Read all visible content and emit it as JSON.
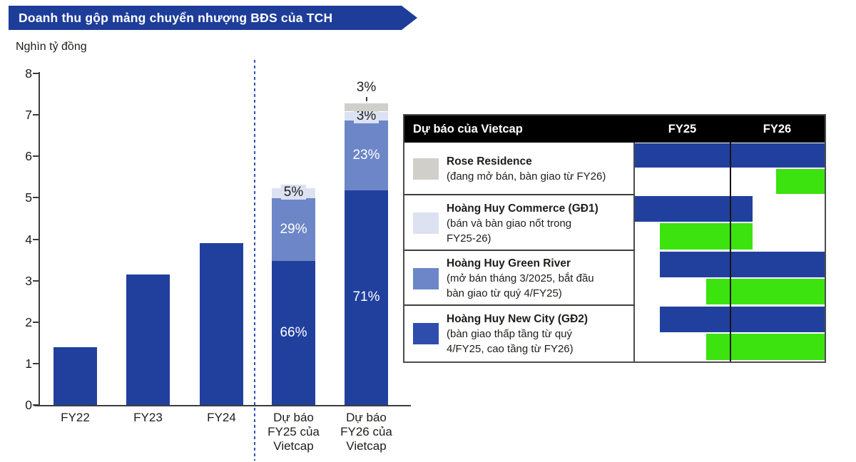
{
  "colors": {
    "dark_blue": "#21409e",
    "medium_blue": "#6d86c7",
    "light_blue": "#dce2f1",
    "gray": "#d0cfca",
    "green": "#3ce30e",
    "swatch_blue": "#2e4dad",
    "banner": "#1d3d99",
    "dashed": "#2b50bb",
    "header_bg": "#000000",
    "axis": "#3c3c3c"
  },
  "chart_data": {
    "type": "bar",
    "title": "Doanh thu gộp mảng chuyển nhượng BĐS của TCH",
    "ylabel": "Nghìn tỷ đồng",
    "xlabel": "",
    "ylim": [
      0,
      8
    ],
    "yticks": [
      0,
      1,
      2,
      3,
      4,
      5,
      6,
      7,
      8
    ],
    "grid": false,
    "categories": [
      "FY22",
      "FY23",
      "FY24",
      "Dự báo FY25 của Vietcap",
      "Dự báo FY26 của Vietcap"
    ],
    "totals": [
      1.4,
      3.15,
      3.9,
      5.25,
      7.3
    ],
    "bars": [
      {
        "category": "FY22",
        "label_lines": [
          "FY22"
        ],
        "segments": [
          {
            "value": 1.4,
            "color": "dark_blue"
          }
        ]
      },
      {
        "category": "FY23",
        "label_lines": [
          "FY23"
        ],
        "segments": [
          {
            "value": 3.15,
            "color": "dark_blue"
          }
        ]
      },
      {
        "category": "FY24",
        "label_lines": [
          "FY24"
        ],
        "segments": [
          {
            "value": 3.9,
            "color": "dark_blue"
          }
        ]
      },
      {
        "category": "Dự báo FY25 của Vietcap",
        "label_lines": [
          "Dự báo",
          "FY25 của",
          "Vietcap"
        ],
        "segments": [
          {
            "value": 3.47,
            "color": "dark_blue",
            "label": "66%",
            "label_color": "#ffffff"
          },
          {
            "value": 1.52,
            "color": "medium_blue",
            "label": "29%",
            "label_color": "#ffffff"
          },
          {
            "value": 0.26,
            "color": "light_blue",
            "label": "5%",
            "label_color": "#1d1d1b",
            "label_bg": true
          }
        ]
      },
      {
        "category": "Dự báo FY26 của Vietcap",
        "label_lines": [
          "Dự báo",
          "FY26 của",
          "Vietcap"
        ],
        "segments": [
          {
            "value": 5.18,
            "color": "dark_blue",
            "label": "71%",
            "label_color": "#ffffff"
          },
          {
            "value": 1.68,
            "color": "medium_blue",
            "label": "23%",
            "label_color": "#ffffff"
          },
          {
            "value": 0.22,
            "color": "light_blue",
            "label": "3%",
            "label_color": "#1d1d1b",
            "label_bg": true
          },
          {
            "value": 0.22,
            "color": "gray",
            "label": "3%",
            "label_color": "#1d1d1b",
            "label_outside": true
          }
        ]
      }
    ],
    "legend_position": "right-table"
  },
  "table": {
    "header": {
      "title": "Dự báo của Vietcap",
      "col1": "FY25",
      "col2": "FY26"
    },
    "rows": [
      {
        "swatch": "gray",
        "title": "Rose Residence",
        "desc": "(đang mở bán, bàn giao từ FY26)",
        "blue_bar": [
          0,
          100
        ],
        "green_bar": [
          74.5,
          100
        ]
      },
      {
        "swatch": "light_blue",
        "title": "Hoàng Huy Commerce (GĐ1)",
        "desc": "(bán và bàn giao nốt trong\nFY25-26)",
        "blue_bar": [
          0,
          62
        ],
        "green_bar": [
          13,
          62
        ]
      },
      {
        "swatch": "medium_blue",
        "title": "Hoàng Huy Green River",
        "desc": "(mở bán tháng 3/2025, bắt đầu\nbàn giao từ quý 4/FY25)",
        "blue_bar": [
          13,
          100
        ],
        "green_bar": [
          37.5,
          100
        ]
      },
      {
        "swatch": "swatch_blue",
        "title": "Hoàng Huy New City (GĐ2)",
        "desc": "(bàn giao thấp tầng từ quý\n4/FY25, cao tầng từ FY26)",
        "blue_bar": [
          13,
          100
        ],
        "green_bar": [
          37.5,
          100
        ]
      }
    ]
  }
}
